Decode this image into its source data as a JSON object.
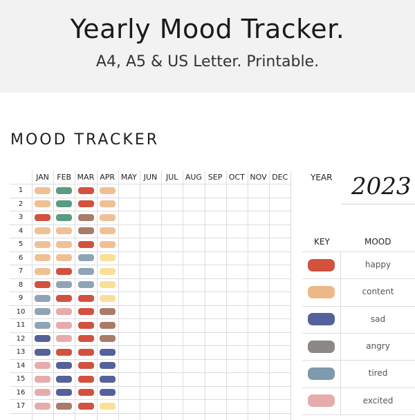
{
  "banner": {
    "title": "Yearly Mood Tracker.",
    "subtitle": "A4, A5 & US Letter. Printable."
  },
  "sheet": {
    "title": "MOOD TRACKER",
    "months": [
      "JAN",
      "FEB",
      "MAR",
      "APR",
      "MAY",
      "JUN",
      "JUL",
      "AUG",
      "SEP",
      "OCT",
      "NOV",
      "DEC"
    ],
    "days": [
      "1",
      "2",
      "3",
      "4",
      "5",
      "6",
      "7",
      "8",
      "9",
      "10",
      "11",
      "12",
      "13",
      "14",
      "15",
      "16",
      "17"
    ],
    "year_label": "YEAR",
    "year_value": "2023",
    "key_header": "KEY",
    "mood_header": "MOOD"
  },
  "moods": [
    {
      "id": "happy",
      "label": "happy",
      "color": "#d2513f"
    },
    {
      "id": "content",
      "label": "content",
      "color": "#ecb886"
    },
    {
      "id": "sad",
      "label": "sad",
      "color": "#55619b"
    },
    {
      "id": "angry",
      "label": "angry",
      "color": "#8d8885"
    },
    {
      "id": "tired",
      "label": "tired",
      "color": "#7e9aad"
    },
    {
      "id": "excited",
      "label": "excited",
      "color": "#e6acab"
    }
  ],
  "extra_colors": {
    "green": "#5b9a83",
    "brown": "#a97b68",
    "pale_yellow": "#fbdf99"
  },
  "entries": [
    [
      "#f0c095",
      "#5b9a83",
      "#d2513f",
      "#f0c095"
    ],
    [
      "#f0c095",
      "#5b9a83",
      "#d2513f",
      "#f0c095"
    ],
    [
      "#d2513f",
      "#5b9a83",
      "#a97b68",
      "#f0c095"
    ],
    [
      "#f0c095",
      "#f0c095",
      "#a97b68",
      "#f0c095"
    ],
    [
      "#f0c095",
      "#f0c095",
      "#d2513f",
      "#f0c095"
    ],
    [
      "#f0c095",
      "#f0c095",
      "#8fa4b6",
      "#fbdf99"
    ],
    [
      "#f0c095",
      "#d2513f",
      "#8fa4b6",
      "#fbdf99"
    ],
    [
      "#d2513f",
      "#8fa4b6",
      "#8fa4b6",
      "#fbdf99"
    ],
    [
      "#8fa4b6",
      "#d2513f",
      "#d2513f",
      "#fbdf99"
    ],
    [
      "#8fa4b6",
      "#e6acab",
      "#d2513f",
      "#a97b68"
    ],
    [
      "#8fa4b6",
      "#e6acab",
      "#d2513f",
      "#a97b68"
    ],
    [
      "#55619b",
      "#e6acab",
      "#d2513f",
      "#a97b68"
    ],
    [
      "#55619b",
      "#d2513f",
      "#d2513f",
      "#55619b"
    ],
    [
      "#e6acab",
      "#55619b",
      "#d2513f",
      "#55619b"
    ],
    [
      "#e6acab",
      "#55619b",
      "#d2513f",
      "#55619b"
    ],
    [
      "#e6acab",
      "#55619b",
      "#d2513f",
      "#55619b"
    ],
    [
      "#e6acab",
      "#a97b68",
      "#d2513f",
      "#fbdf99"
    ]
  ]
}
